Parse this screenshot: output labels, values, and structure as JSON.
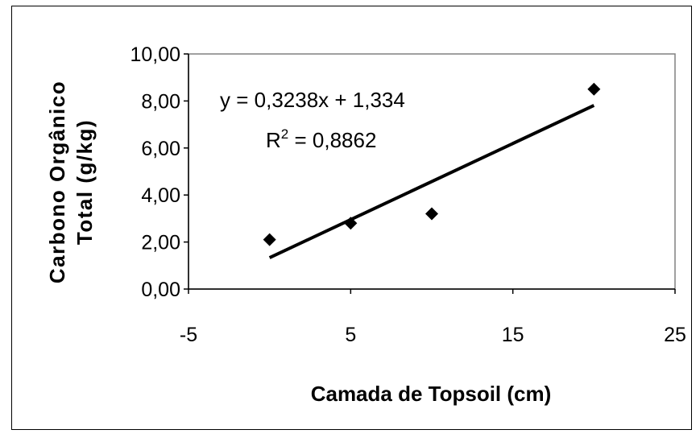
{
  "chart_data": {
    "type": "scatter",
    "xlabel": "Camada de Topsoil (cm)",
    "ylabel_line1": "Carbono Orgânico",
    "ylabel_line2": "Total (g/kg)",
    "xlim": [
      -5,
      25
    ],
    "ylim": [
      0,
      10
    ],
    "x_ticks": [
      -5,
      5,
      15,
      25
    ],
    "x_tick_labels": [
      "-5",
      "5",
      "15",
      "25"
    ],
    "y_ticks": [
      0,
      2,
      4,
      6,
      8,
      10
    ],
    "y_tick_labels": [
      "0,00",
      "2,00",
      "4,00",
      "6,00",
      "8,00",
      "10,00"
    ],
    "grid": false,
    "points": [
      {
        "x": 0,
        "y": 2.1
      },
      {
        "x": 5,
        "y": 2.8
      },
      {
        "x": 10,
        "y": 3.2
      },
      {
        "x": 20,
        "y": 8.5
      }
    ],
    "trendline": {
      "slope": 0.3238,
      "intercept": 1.334,
      "x_range": [
        0,
        20
      ],
      "equation": "y = 0,3238x + 1,334",
      "r2_prefix": "R",
      "r2_sup": "2",
      "r2_suffix": " = 0,8862"
    },
    "colors": {
      "marker": "#000000",
      "line": "#000000",
      "plot_area": "#ffffff"
    }
  }
}
